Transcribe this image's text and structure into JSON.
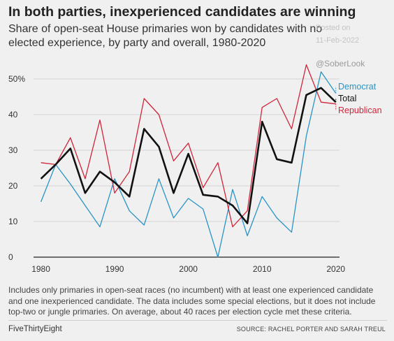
{
  "header": {
    "title": "In both parties, inexperienced candidates are winning",
    "subtitle": "Share of open-seat House primaries won by candidates with no elected experience, by party and overall, 1980-2020"
  },
  "watermark": {
    "posted_on": "Posted on",
    "date": "11-Feb-2022",
    "handle": "@SoberLook"
  },
  "chart_data": {
    "type": "line",
    "x": [
      1980,
      1982,
      1984,
      1986,
      1988,
      1990,
      1992,
      1994,
      1996,
      1998,
      2000,
      2002,
      2004,
      2006,
      2008,
      2010,
      2012,
      2014,
      2016,
      2018,
      2020
    ],
    "series": [
      {
        "name": "Democrat",
        "color": "#2a93c6",
        "values": [
          15.5,
          26,
          20.5,
          14.5,
          8.5,
          22,
          13,
          9,
          22,
          11,
          16.5,
          13.5,
          0,
          19,
          6,
          17,
          11,
          7,
          34,
          52,
          46
        ]
      },
      {
        "name": "Total",
        "color": "#111111",
        "values": [
          22,
          26,
          30.5,
          18,
          24,
          21,
          17,
          36,
          31,
          18,
          29,
          17.5,
          17,
          14.5,
          9.5,
          38,
          27.5,
          26.5,
          45.5,
          47.5,
          43.5
        ]
      },
      {
        "name": "Republican",
        "color": "#d0253a",
        "values": [
          26.5,
          26,
          33.5,
          22,
          38.5,
          18,
          24,
          44.5,
          40,
          27,
          32,
          19.5,
          26.5,
          8.5,
          13,
          42,
          44.5,
          36,
          54,
          43.5,
          43
        ]
      }
    ],
    "x_ticks": [
      "1980",
      "1990",
      "2000",
      "2010",
      "2020"
    ],
    "y_ticks": [
      "0",
      "10",
      "20",
      "30",
      "40",
      "50%"
    ],
    "xlim": [
      1979,
      2020.5
    ],
    "ylim": [
      0,
      50
    ],
    "grid": "horizontal",
    "legend": "right-end labels"
  },
  "notes": "Includes only primaries in open-seat races (no incumbent) with at least one experienced candidate and one inexperienced candidate. The data includes some special elections, but it does not include top-two or jungle primaries. On average, about 40 races per election cycle met these criteria.",
  "footer": {
    "brand": "FiveThirtyEight",
    "source": "SOURCE: RACHEL PORTER AND SARAH TREUL"
  }
}
